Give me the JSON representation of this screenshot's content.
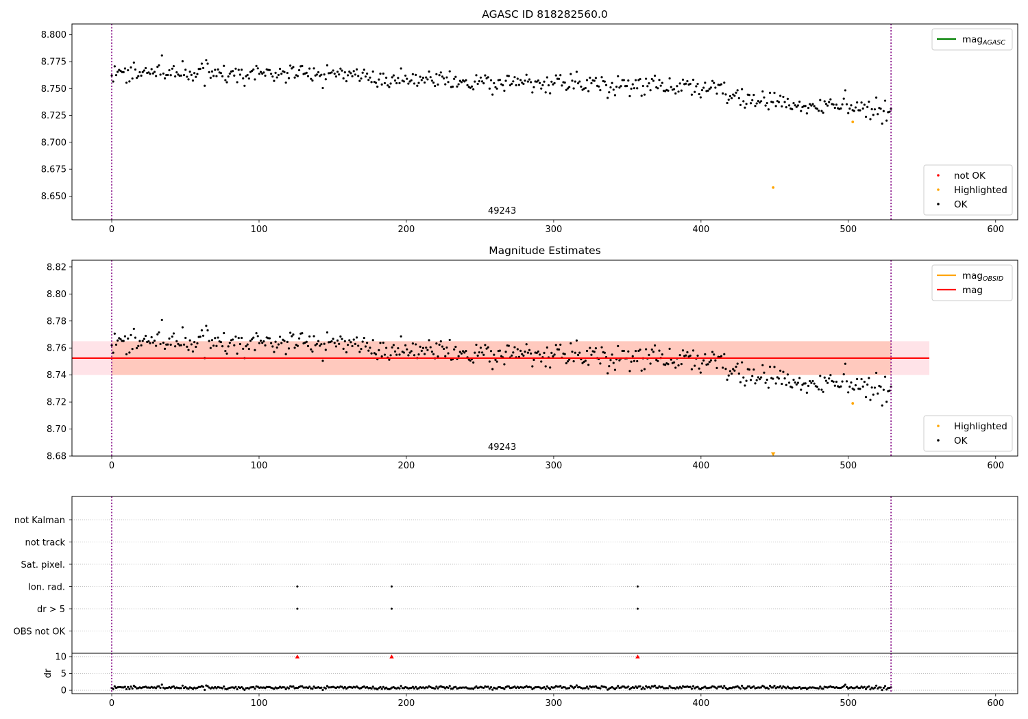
{
  "chart_data": [
    {
      "type": "scatter",
      "title": "AGASC ID 818282560.0",
      "xlim": [
        -27,
        615
      ],
      "ylim": [
        8.628,
        8.81
      ],
      "xticks": [
        0,
        100,
        200,
        300,
        400,
        500,
        600
      ],
      "yticks": [
        8.65,
        8.675,
        8.7,
        8.725,
        8.75,
        8.775,
        8.8
      ],
      "ytick_format": 3,
      "obsid_label": "49243",
      "vlines_x": [
        0,
        529
      ],
      "legend_upper": {
        "placement": "top-right",
        "entries": [
          {
            "label": "mag",
            "sub": "AGASC",
            "color": "#008000",
            "kind": "line"
          }
        ]
      },
      "legend_lower": {
        "placement": "bottom-right",
        "entries": [
          {
            "label": "not OK",
            "color": "#ff0000",
            "kind": "dot"
          },
          {
            "label": "Highlighted",
            "color": "#ffa500",
            "kind": "dot"
          },
          {
            "label": "OK",
            "color": "#000000",
            "kind": "dot"
          }
        ]
      },
      "series": [
        {
          "name": "OK",
          "color": "#000000",
          "marker": "dot",
          "generated": true,
          "n": 529,
          "x_start": 0,
          "x_end": 529,
          "trend": [
            [
              0,
              8.764
            ],
            [
              80,
              8.765
            ],
            [
              150,
              8.763
            ],
            [
              250,
              8.756
            ],
            [
              350,
              8.752
            ],
            [
              410,
              8.75
            ],
            [
              430,
              8.738
            ],
            [
              530,
              8.73
            ]
          ],
          "scatter": 0.0065
        },
        {
          "name": "Highlighted",
          "color": "#ffa500",
          "marker": "dot",
          "points": [
            [
              449,
              8.658
            ],
            [
              503,
              8.719
            ]
          ]
        }
      ]
    },
    {
      "type": "scatter",
      "title": "Magnitude Estimates",
      "xlim": [
        -27,
        615
      ],
      "ylim": [
        8.68,
        8.825
      ],
      "xticks": [
        0,
        100,
        200,
        300,
        400,
        500,
        600
      ],
      "yticks": [
        8.68,
        8.7,
        8.72,
        8.74,
        8.76,
        8.78,
        8.8,
        8.82
      ],
      "ytick_format": 2,
      "obsid_label": "49243",
      "vlines_x": [
        0,
        529
      ],
      "mag_line": {
        "value": 8.7525,
        "color": "#ff0000",
        "x_range": [
          -27,
          555
        ]
      },
      "bands": [
        {
          "ylim": [
            8.74,
            8.765
          ],
          "x_range": [
            -27,
            555
          ],
          "color": "#ffc0cb",
          "opacity": 0.45
        },
        {
          "ylim": [
            8.74,
            8.765
          ],
          "x_range": [
            0,
            529
          ],
          "color": "#ffa07a",
          "opacity": 0.38
        }
      ],
      "legend_upper": {
        "placement": "top-right",
        "entries": [
          {
            "label": "mag",
            "sub": "OBSID",
            "color": "#ffa500",
            "kind": "line"
          },
          {
            "label": "mag",
            "sub": "",
            "color": "#ff0000",
            "kind": "line"
          }
        ]
      },
      "legend_lower": {
        "placement": "bottom-right",
        "entries": [
          {
            "label": "Highlighted",
            "color": "#ffa500",
            "kind": "dot"
          },
          {
            "label": "OK",
            "color": "#000000",
            "kind": "dot"
          }
        ]
      },
      "series": [
        {
          "name": "OK",
          "color": "#000000",
          "marker": "dot",
          "generated": true,
          "n": 529,
          "x_start": 0,
          "x_end": 529,
          "trend": [
            [
              0,
              8.764
            ],
            [
              80,
              8.765
            ],
            [
              150,
              8.763
            ],
            [
              250,
              8.756
            ],
            [
              350,
              8.752
            ],
            [
              410,
              8.75
            ],
            [
              430,
              8.738
            ],
            [
              530,
              8.73
            ]
          ],
          "scatter": 0.0065
        },
        {
          "name": "Highlighted",
          "color": "#ffa500",
          "marker": "dot",
          "points": [
            [
              503,
              8.719
            ]
          ]
        },
        {
          "name": "off-scale",
          "color": "#ffa500",
          "marker": "triangle-down",
          "points": [
            [
              449,
              8.6815
            ]
          ]
        }
      ]
    },
    {
      "type": "scatter",
      "title": "",
      "xlim": [
        -27,
        615
      ],
      "categories": [
        "not Kalman",
        "not track",
        "Sat. pixel.",
        "Ion. rad.",
        "dr > 5",
        "OBS not OK"
      ],
      "vlines_x": [
        0,
        529
      ],
      "flags": [
        {
          "category": "Ion. rad.",
          "x": [
            126,
            190,
            357
          ],
          "color": "#000000"
        },
        {
          "category": "dr > 5",
          "x": [
            126,
            190,
            357
          ],
          "color": "#000000"
        }
      ]
    },
    {
      "type": "scatter",
      "title": "",
      "xlim": [
        -27,
        615
      ],
      "ylim": [
        -1,
        11
      ],
      "xticks": [
        0,
        100,
        200,
        300,
        400,
        500,
        600
      ],
      "yticks": [
        0,
        5,
        10
      ],
      "ylabel": "dr",
      "vlines_x": [
        0,
        529
      ],
      "series": [
        {
          "name": "dr",
          "color": "#000000",
          "marker": "dot",
          "generated": true,
          "n": 529,
          "x_start": 0,
          "x_end": 529,
          "mean": 0.8,
          "scatter": 0.35
        },
        {
          "name": "off-scale",
          "color": "#ff0000",
          "marker": "triangle-up",
          "points": [
            [
              126,
              10
            ],
            [
              190,
              10
            ],
            [
              357,
              10
            ]
          ]
        }
      ]
    }
  ]
}
